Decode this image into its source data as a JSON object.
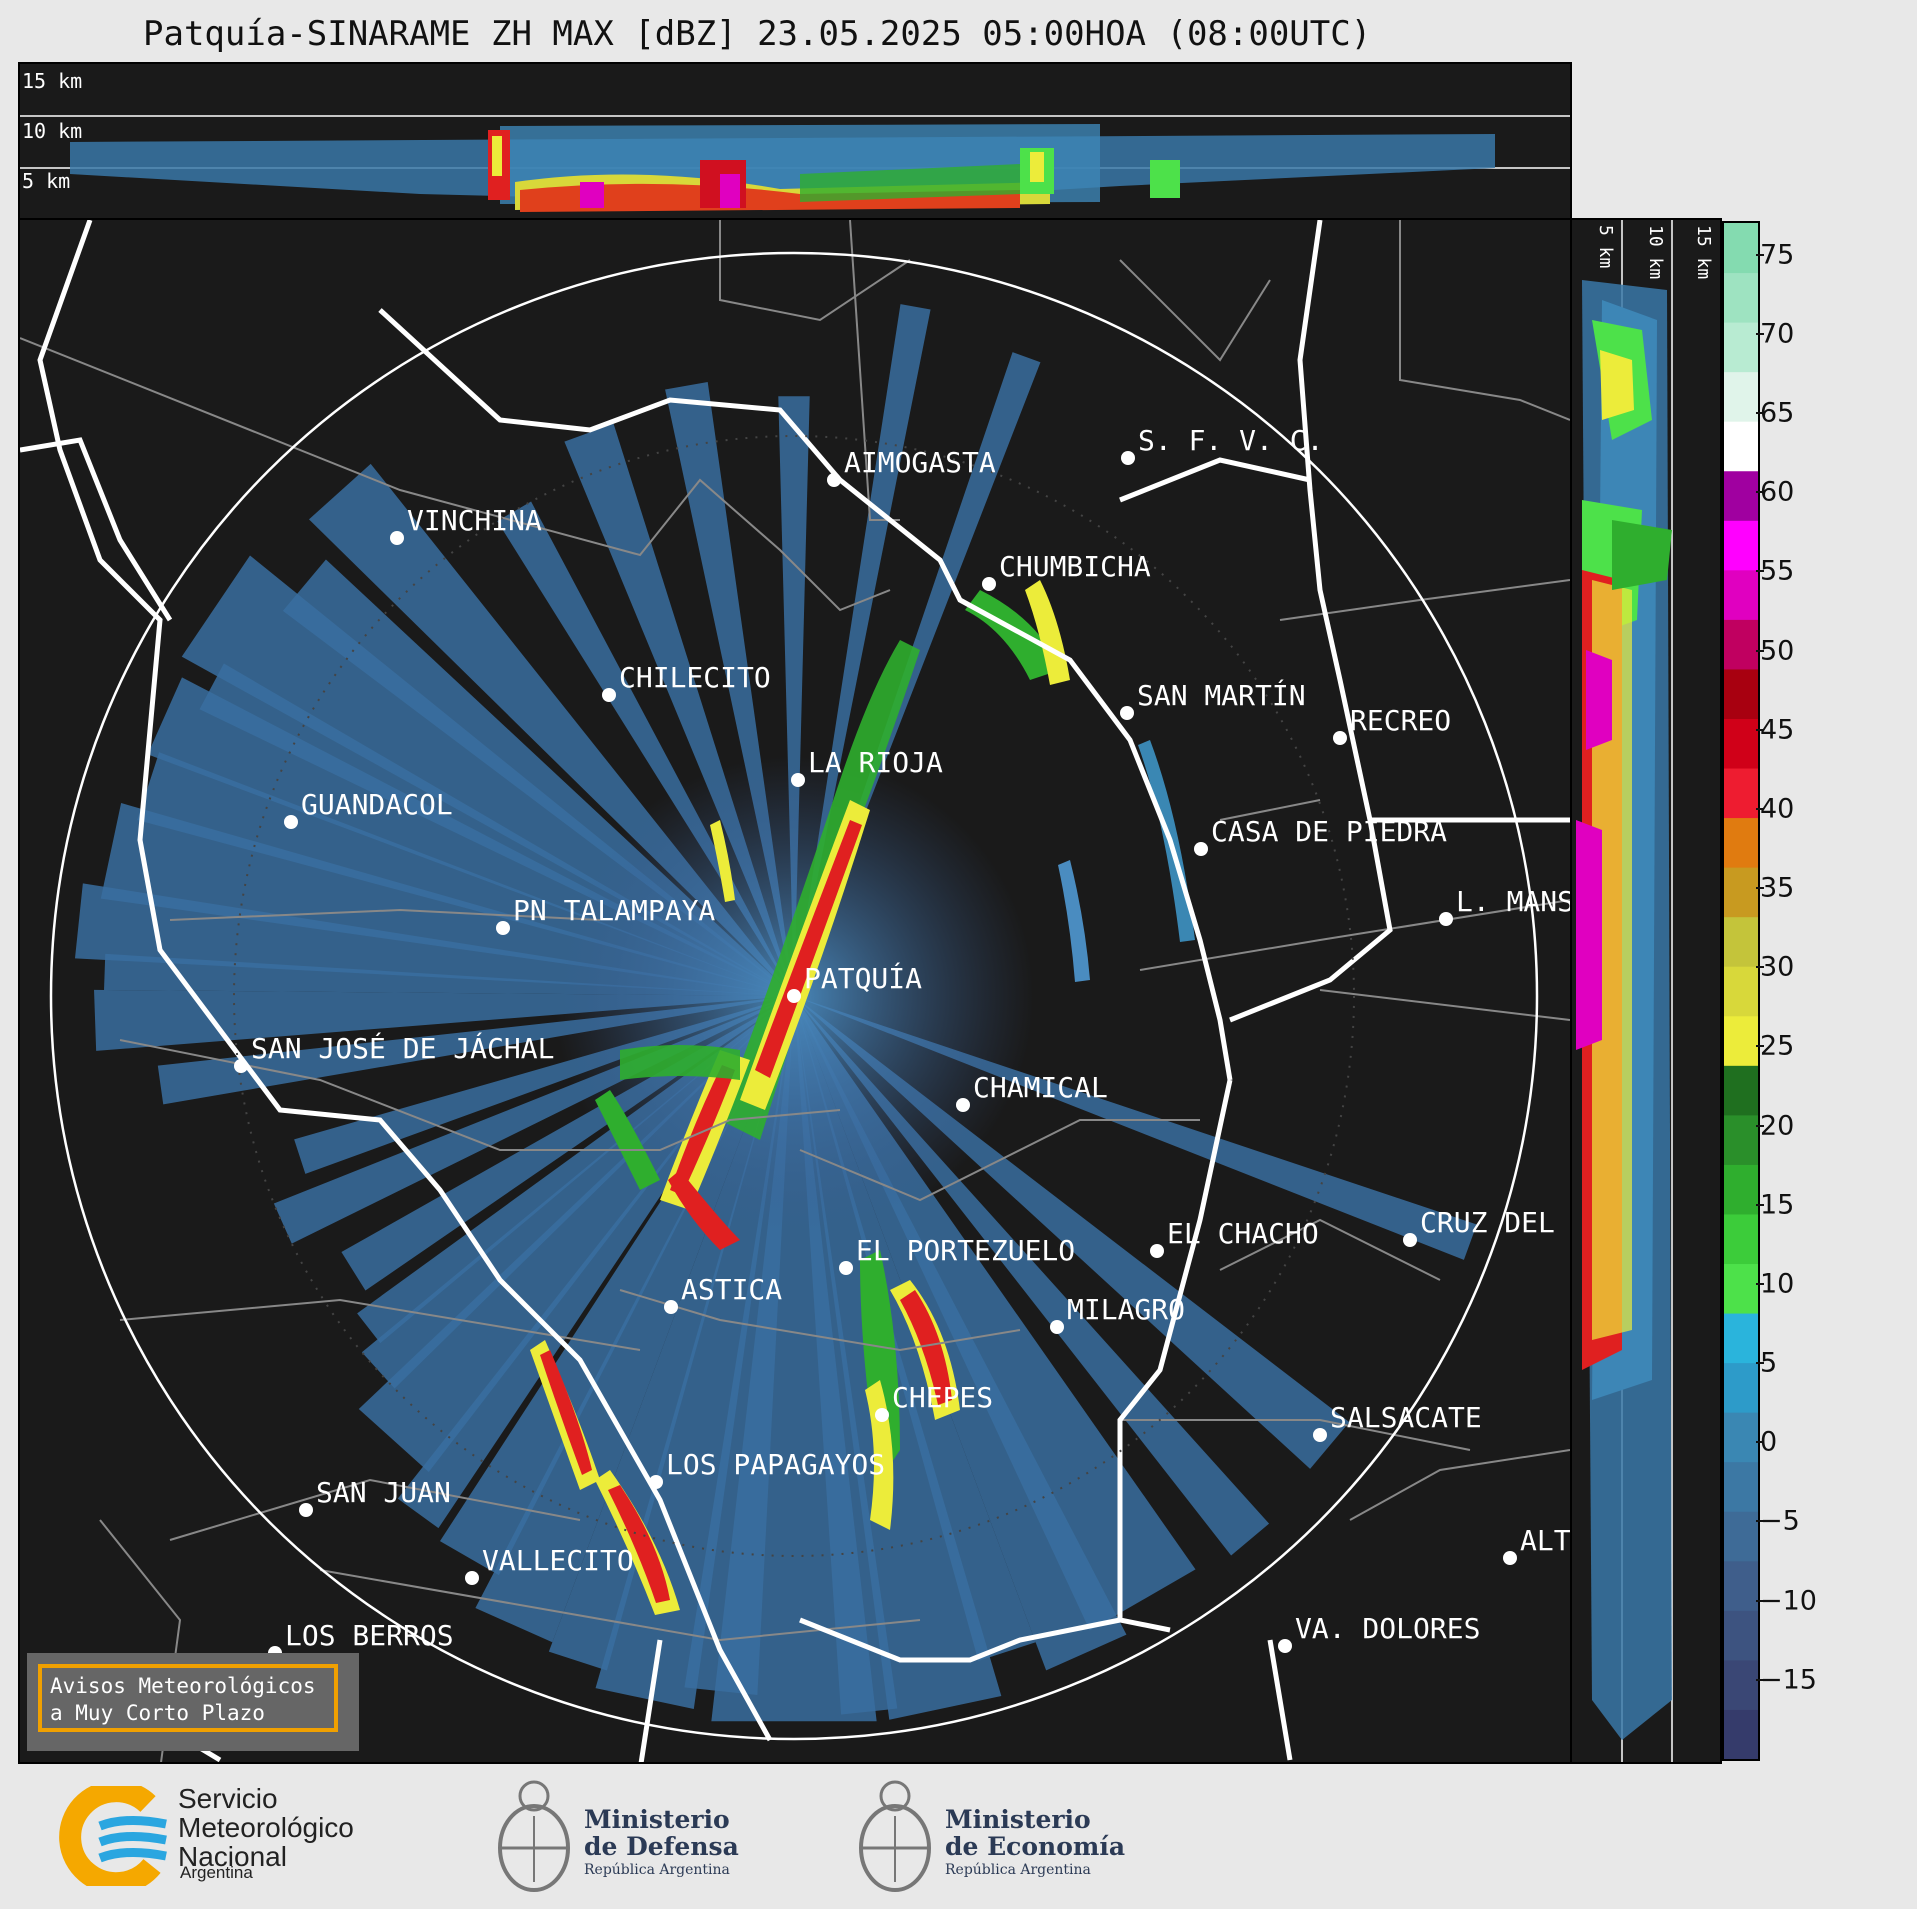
{
  "title": "Patquía-SINARAME ZH MAX [dBZ] 23.05.2025 05:00HOA (08:00UTC)",
  "top_panel": {
    "height_labels": [
      "15 km",
      "10 km",
      "5 km"
    ]
  },
  "side_panel": {
    "height_labels": [
      "5 km",
      "10 km",
      "15 km"
    ]
  },
  "colorbar": {
    "unit": "dBZ",
    "ticks": [
      75,
      70,
      65,
      60,
      55,
      50,
      45,
      40,
      35,
      30,
      25,
      20,
      15,
      10,
      5,
      0,
      -5,
      -10,
      -15
    ],
    "tick_labels": [
      "75",
      "70",
      "65",
      "60",
      "55",
      "50",
      "45",
      "40",
      "35",
      "30",
      "25",
      "20",
      "15",
      "10",
      "5",
      "0",
      "−5",
      "−10",
      "−15"
    ],
    "range": [
      -20,
      77
    ],
    "colors": [
      "#353b6b",
      "#3a4775",
      "#3d5380",
      "#3f5e8b",
      "#3e6b97",
      "#3c78a4",
      "#3a87b3",
      "#2d9bc9",
      "#2ab4dc",
      "#4de14a",
      "#3ccc3a",
      "#2fae2e",
      "#2a8f2a",
      "#1f6f1f",
      "#ecec3a",
      "#d8d83a",
      "#c4c43a",
      "#c89a20",
      "#e07b10",
      "#ee1c30",
      "#d00018",
      "#a80010",
      "#c00060",
      "#e000c0",
      "#ff00ff",
      "#a000a0",
      "#ffffff",
      "#e0f4ea",
      "#b8ebd2",
      "#9ee3c1",
      "#84dbb0"
    ]
  },
  "cities": [
    {
      "name": "AIMOGASTA"
    },
    {
      "name": "S. F. V. C."
    },
    {
      "name": "VINCHINA"
    },
    {
      "name": "CHUMBICHA"
    },
    {
      "name": "CHILECITO"
    },
    {
      "name": "SAN MARTÍN"
    },
    {
      "name": "RECREO"
    },
    {
      "name": "LA RIOJA"
    },
    {
      "name": "GUANDACOL"
    },
    {
      "name": "CASA DE PIEDRA"
    },
    {
      "name": "PN TALAMPAYA"
    },
    {
      "name": "L. MANS"
    },
    {
      "name": "PATQUÍA"
    },
    {
      "name": "SAN JOSÉ DE JÁCHAL"
    },
    {
      "name": "CHAMICAL"
    },
    {
      "name": "CRUZ DEL"
    },
    {
      "name": "EL CHACHO"
    },
    {
      "name": "EL PORTEZUELO"
    },
    {
      "name": "ASTICA"
    },
    {
      "name": "MILAGRO"
    },
    {
      "name": "CHEPES"
    },
    {
      "name": "SALSACATE"
    },
    {
      "name": "LOS PAPAGAYOS"
    },
    {
      "name": "SAN JUAN"
    },
    {
      "name": "ALT"
    },
    {
      "name": "VALLECITO"
    },
    {
      "name": "LOS BERROS"
    },
    {
      "name": "VA. DOLORES"
    }
  ],
  "warning_box": {
    "line1": "Avisos Meteorológicos",
    "line2": "a Muy Corto Plazo"
  },
  "footer": {
    "smn": {
      "line1": "Servicio",
      "line2": "Meteorológico",
      "line3": "Nacional",
      "country": "Argentina"
    },
    "defensa": {
      "line1": "Ministerio",
      "line2": "de Defensa",
      "sub": "República Argentina"
    },
    "economia": {
      "line1": "Ministerio",
      "line2": "de Economía",
      "sub": "República Argentina"
    }
  }
}
